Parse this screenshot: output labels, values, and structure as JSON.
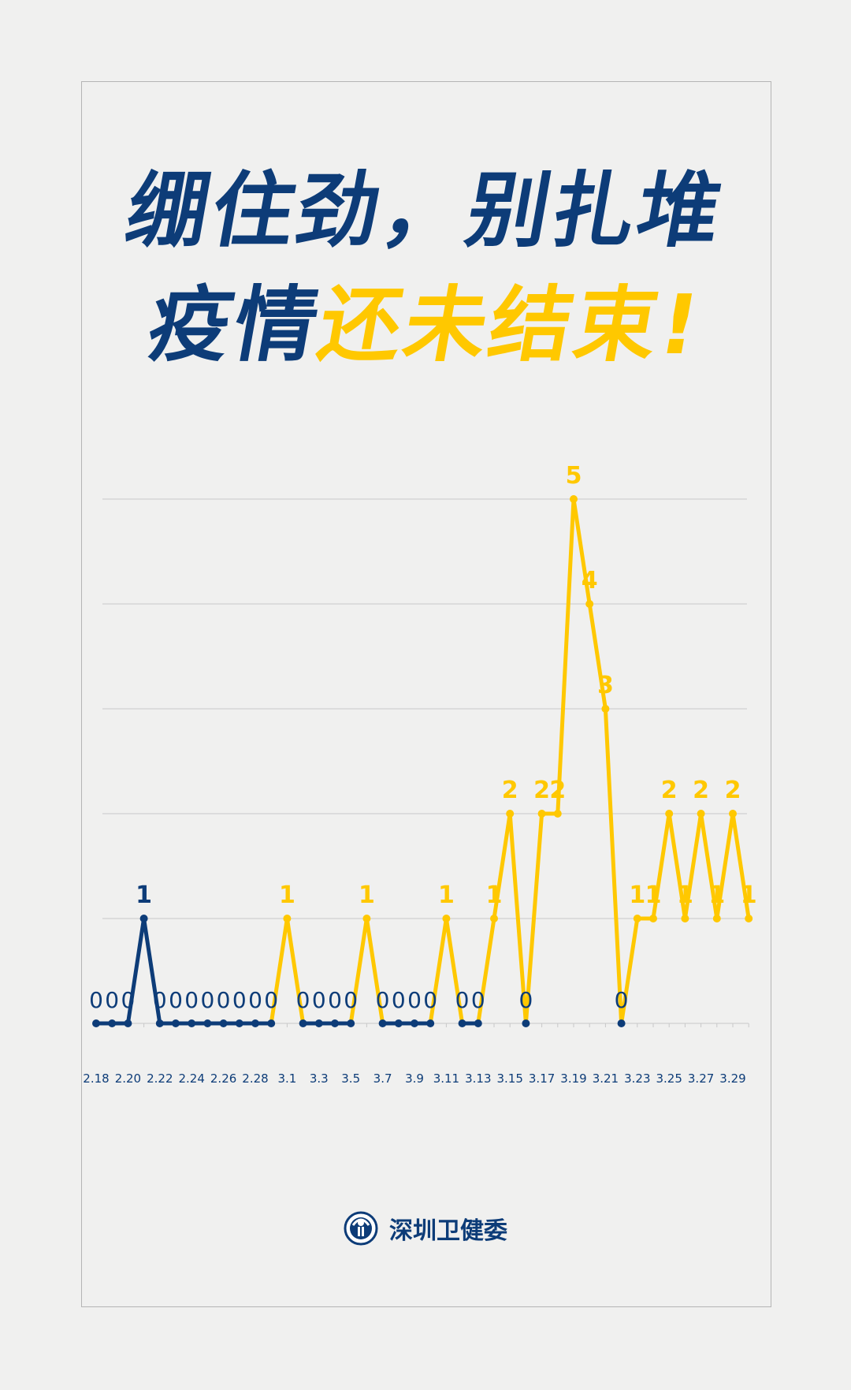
{
  "title": {
    "line1": "绷住劲，别扎堆",
    "line2_part1": "疫情",
    "line2_part2": "还未结束!"
  },
  "footer": {
    "org_name": "深圳卫健委",
    "logo_icon": "shenzhen-health-commission-emblem"
  },
  "colors": {
    "blue": "#0d3c78",
    "yellow": "#ffc800",
    "grid": "#c9c9c9",
    "background": "#f0f0ef"
  },
  "chart_data": {
    "type": "line",
    "title": "",
    "xlabel": "",
    "ylabel": "",
    "ylim": [
      0,
      5
    ],
    "grid": true,
    "x": [
      "2.18",
      "2.19",
      "2.20",
      "2.21",
      "2.22",
      "2.23",
      "2.24",
      "2.25",
      "2.26",
      "2.27",
      "2.28",
      "2.29",
      "3.1",
      "3.2",
      "3.3",
      "3.4",
      "3.5",
      "3.6",
      "3.7",
      "3.8",
      "3.9",
      "3.10",
      "3.11",
      "3.12",
      "3.13",
      "3.14",
      "3.15",
      "3.16",
      "3.17",
      "3.18",
      "3.19",
      "3.20",
      "3.21",
      "3.22",
      "3.23",
      "3.24",
      "3.25",
      "3.26",
      "3.27",
      "3.28",
      "3.29",
      "3.30"
    ],
    "tick_labels": [
      "2.18",
      "2.20",
      "2.22",
      "2.24",
      "2.26",
      "2.28",
      "3.1",
      "3.3",
      "3.5",
      "3.7",
      "3.9",
      "3.11",
      "3.13",
      "3.15",
      "3.17",
      "3.19",
      "3.21",
      "3.23",
      "3.25",
      "3.27",
      "3.29"
    ],
    "values": [
      0,
      0,
      0,
      1,
      0,
      0,
      0,
      0,
      0,
      0,
      0,
      0,
      1,
      0,
      0,
      0,
      0,
      1,
      0,
      0,
      0,
      0,
      1,
      0,
      0,
      1,
      2,
      0,
      2,
      2,
      5,
      4,
      3,
      0,
      1,
      1,
      2,
      1,
      2,
      1,
      2,
      1
    ],
    "data_labels": true
  }
}
